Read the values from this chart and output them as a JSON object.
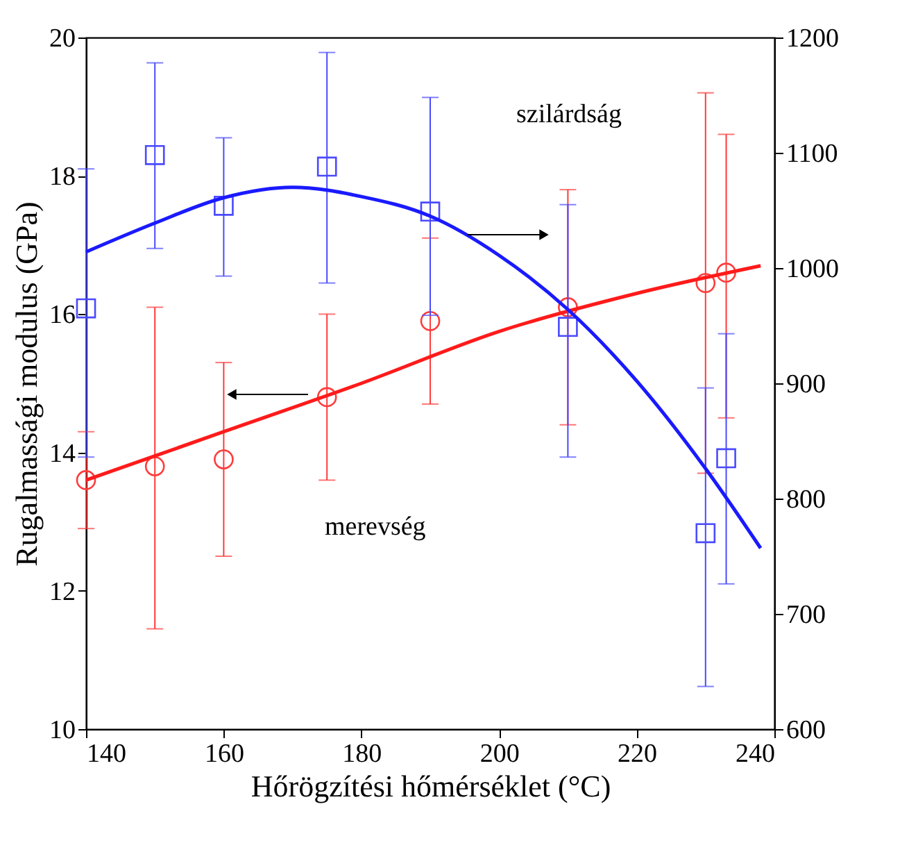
{
  "chart_data": {
    "type": "scatter",
    "xlabel": "Hőrögzítési hőmérséklet (°C)",
    "ylabel": "Rugalmassági modulus (GPa)",
    "xlim": [
      140,
      240
    ],
    "xticks": [
      140,
      160,
      180,
      200,
      220,
      240
    ],
    "ylim": [
      10,
      20
    ],
    "yticks": [
      10,
      12,
      14,
      16,
      18,
      20
    ],
    "y2lim": [
      600,
      1200
    ],
    "y2ticks": [
      600,
      700,
      800,
      900,
      1000,
      1100,
      1200
    ],
    "series": [
      {
        "marker": "circle",
        "color": "#ff3b3b",
        "x": [
          140,
          150,
          160,
          175,
          190,
          210,
          230,
          233
        ],
        "values": [
          13.6,
          13.8,
          13.9,
          14.8,
          15.9,
          16.1,
          16.45,
          16.6
        ],
        "errors": [
          [
            12.9,
            14.3
          ],
          [
            11.45,
            16.1
          ],
          [
            12.5,
            15.3
          ],
          [
            13.6,
            16.0
          ],
          [
            14.7,
            17.1
          ],
          [
            14.4,
            17.8
          ],
          [
            13.7,
            19.2
          ],
          [
            14.5,
            18.6
          ]
        ]
      },
      {
        "type": "line",
        "color": "#ff1a1a",
        "x": [
          140,
          160,
          180,
          200,
          220,
          238
        ],
        "values": [
          13.6,
          14.3,
          15.0,
          15.75,
          16.3,
          16.7
        ]
      },
      {
        "axis": "y2",
        "marker": "square",
        "color": "#4a4aff",
        "x": [
          140,
          150,
          160,
          175,
          190,
          210,
          230,
          233
        ],
        "values": [
          965,
          1098,
          1054,
          1088,
          1049,
          949,
          770,
          835
        ],
        "errors": [
          [
            836,
            1086
          ],
          [
            1017,
            1178
          ],
          [
            993,
            1113
          ],
          [
            987,
            1187
          ],
          [
            959,
            1148
          ],
          [
            836,
            1055
          ],
          [
            637,
            896
          ],
          [
            726,
            943
          ]
        ]
      },
      {
        "type": "line",
        "axis": "y2",
        "color": "#1a1aff",
        "x": [
          140,
          150,
          160,
          170,
          180,
          190,
          200,
          210,
          220,
          230,
          238
        ],
        "values": [
          1014,
          1039,
          1061,
          1070,
          1062,
          1045,
          1011,
          964,
          902,
          826,
          757
        ]
      }
    ],
    "annotations": [
      "merevség",
      "szilárdság"
    ]
  }
}
